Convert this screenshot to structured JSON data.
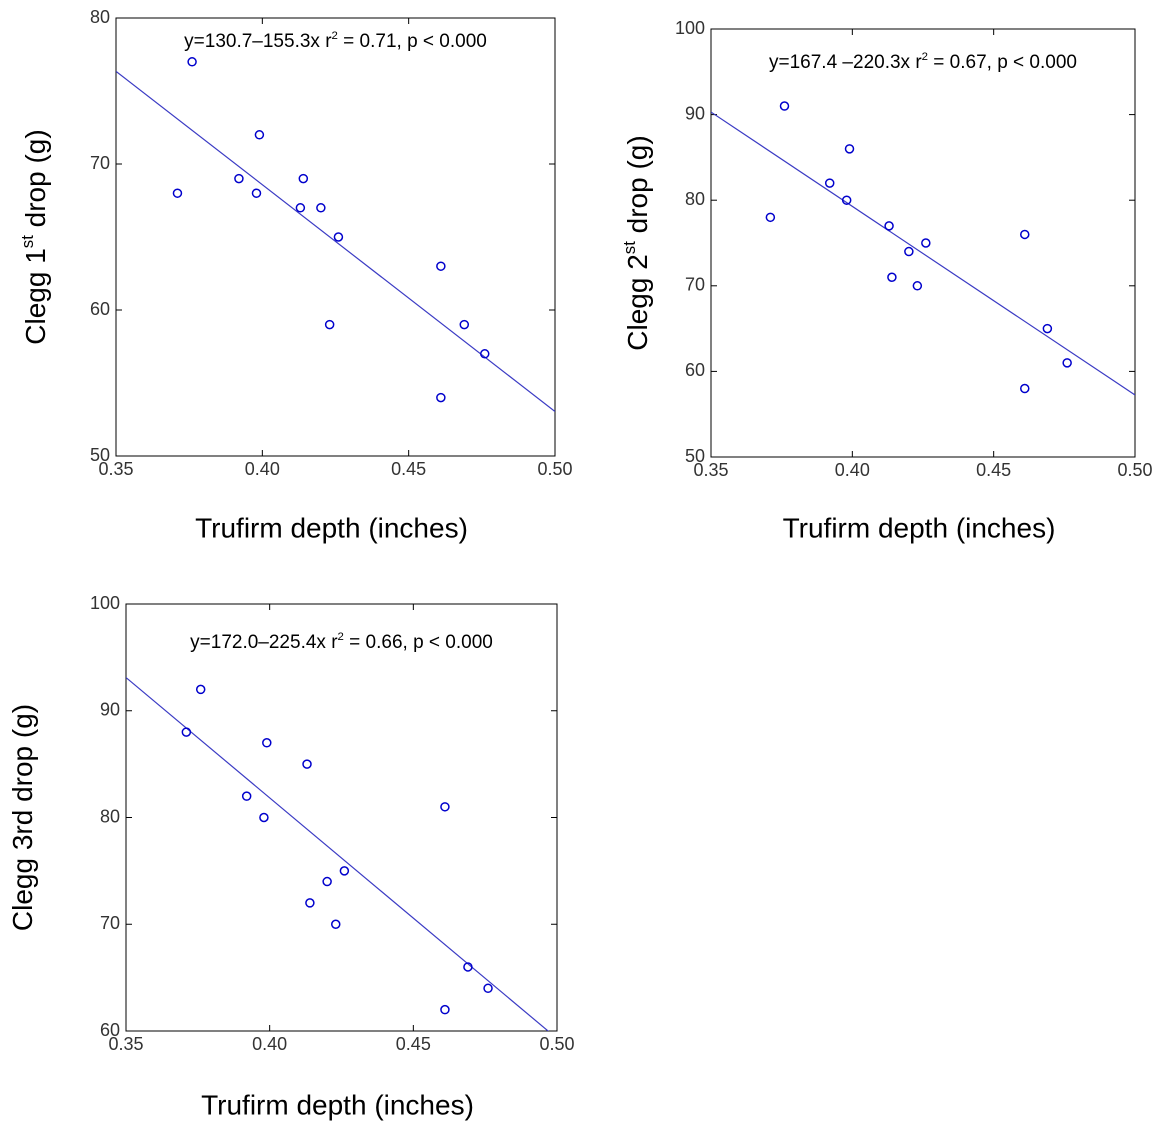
{
  "chart_data": [
    {
      "type": "scatter",
      "annotation": [
        "y=130.7–155.3x  r",
        "2",
        " = 0.71, p < 0.000"
      ],
      "x_label": "Trufirm depth (inches)",
      "y_label": [
        "Clegg 1",
        "st",
        " drop (g)"
      ],
      "x": [
        0.371,
        0.376,
        0.392,
        0.398,
        0.399,
        0.413,
        0.414,
        0.42,
        0.426,
        0.423,
        0.461,
        0.461,
        0.469,
        0.476
      ],
      "values": [
        68,
        77,
        69,
        68,
        72,
        67,
        69,
        67,
        65,
        59,
        63,
        54,
        59,
        57
      ],
      "fit": {
        "intercept": 130.7,
        "slope": -155.3
      },
      "color": "#0000cc",
      "line_color": "#3b3bc4",
      "xlim": [
        0.35,
        0.5
      ],
      "xticks": [
        0.35,
        {
          "value": 0.4,
          "label": "0.40"
        },
        0.45,
        {
          "value": 0.5,
          "label": "0.50"
        }
      ],
      "ylim": [
        50,
        80
      ],
      "yticks": [
        50,
        60,
        70,
        80
      ]
    },
    {
      "type": "scatter",
      "annotation": [
        "y=167.4 –220.3x  r",
        "2",
        " = 0.67, p < 0.000"
      ],
      "x_label": "Trufirm depth (inches)",
      "y_label": [
        "Clegg 2",
        "st",
        " drop (g)"
      ],
      "x": [
        0.371,
        0.376,
        0.392,
        0.398,
        0.399,
        0.413,
        0.414,
        0.42,
        0.426,
        0.423,
        0.461,
        0.461,
        0.469,
        0.476
      ],
      "values": [
        78,
        91,
        82,
        80,
        86,
        77,
        71,
        74,
        75,
        70,
        76,
        58,
        65,
        61
      ],
      "fit": {
        "intercept": 167.4,
        "slope": -220.3
      },
      "color": "#0000cc",
      "line_color": "#3b3bc4",
      "xlim": [
        0.35,
        0.5
      ],
      "xticks": [
        0.35,
        {
          "value": 0.4,
          "label": "0.40"
        },
        0.45,
        {
          "value": 0.5,
          "label": "0.50"
        }
      ],
      "ylim": [
        50,
        100
      ],
      "yticks": [
        50,
        60,
        70,
        80,
        90,
        100
      ]
    },
    {
      "type": "scatter",
      "annotation": [
        "y=172.0–225.4x  r",
        "2",
        " = 0.66, p < 0.000"
      ],
      "x_label": "Trufirm depth (inches)",
      "y_label": [
        "Clegg 3rd drop (g)"
      ],
      "x": [
        0.371,
        0.376,
        0.392,
        0.398,
        0.399,
        0.413,
        0.414,
        0.42,
        0.426,
        0.423,
        0.461,
        0.461,
        0.469,
        0.476
      ],
      "values": [
        88,
        92,
        82,
        80,
        87,
        85,
        72,
        74,
        75,
        70,
        81,
        62,
        66,
        64
      ],
      "fit": {
        "intercept": 172.0,
        "slope": -225.4
      },
      "color": "#0000cc",
      "line_color": "#3b3bc4",
      "xlim": [
        0.35,
        0.5
      ],
      "xticks": [
        0.35,
        {
          "value": 0.4,
          "label": "0.40"
        },
        0.45,
        {
          "value": 0.5,
          "label": "0.50"
        }
      ],
      "ylim": [
        60,
        100
      ],
      "yticks": [
        60,
        70,
        80,
        90,
        100
      ]
    }
  ]
}
